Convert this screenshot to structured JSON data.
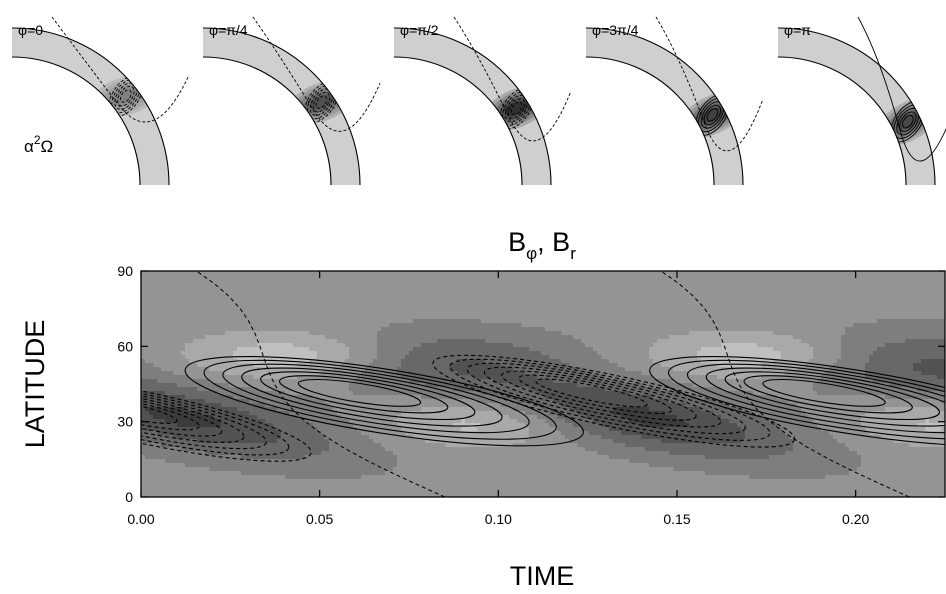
{
  "panels": {
    "labels": [
      "φ=0",
      "φ=π/4",
      "φ=π/2",
      "φ=3π/4",
      "φ=π"
    ],
    "model_label": {
      "base": "α",
      "superscript": "2",
      "suffix": "Ω"
    },
    "fill_peak": [
      0.45,
      0.75,
      0.95,
      0.85,
      0.8
    ],
    "contour_sign": [
      "negative",
      "negative",
      "negative",
      "positive",
      "positive"
    ]
  },
  "chart_data": {
    "type": "heatmap",
    "title": {
      "main": "B",
      "sub1": "φ",
      "sep": ", B",
      "sub2": "r"
    },
    "xlabel": "TIME",
    "ylabel": "LATITUDE",
    "xlim": [
      0.0,
      0.225
    ],
    "ylim": [
      0,
      90
    ],
    "xticks": [
      0.0,
      0.05,
      0.1,
      0.15,
      0.2
    ],
    "xtick_labels": [
      "0.00",
      "0.05",
      "0.10",
      "0.15",
      "0.20"
    ],
    "yticks": [
      0,
      30,
      60,
      90
    ],
    "ytick_labels": [
      "0",
      "30",
      "60",
      "90"
    ],
    "period": 0.13,
    "fill_field": "B_phi (grey shading)",
    "contour_field": "B_r (solid positive, dashed negative)",
    "positive_fronts": [
      {
        "t": 0.06,
        "lat": 42,
        "semi_t": 0.024,
        "semi_lat": 5,
        "tilt_deg": 9
      },
      {
        "t": 0.19,
        "lat": 42,
        "semi_t": 0.024,
        "semi_lat": 5,
        "tilt_deg": 9
      }
    ],
    "negative_fronts": [
      {
        "t": -0.005,
        "lat": 35,
        "semi_t": 0.02,
        "semi_lat": 4,
        "tilt_deg": 12
      },
      {
        "t": 0.125,
        "lat": 42,
        "semi_t": 0.022,
        "semi_lat": 4,
        "tilt_deg": 12
      }
    ]
  }
}
